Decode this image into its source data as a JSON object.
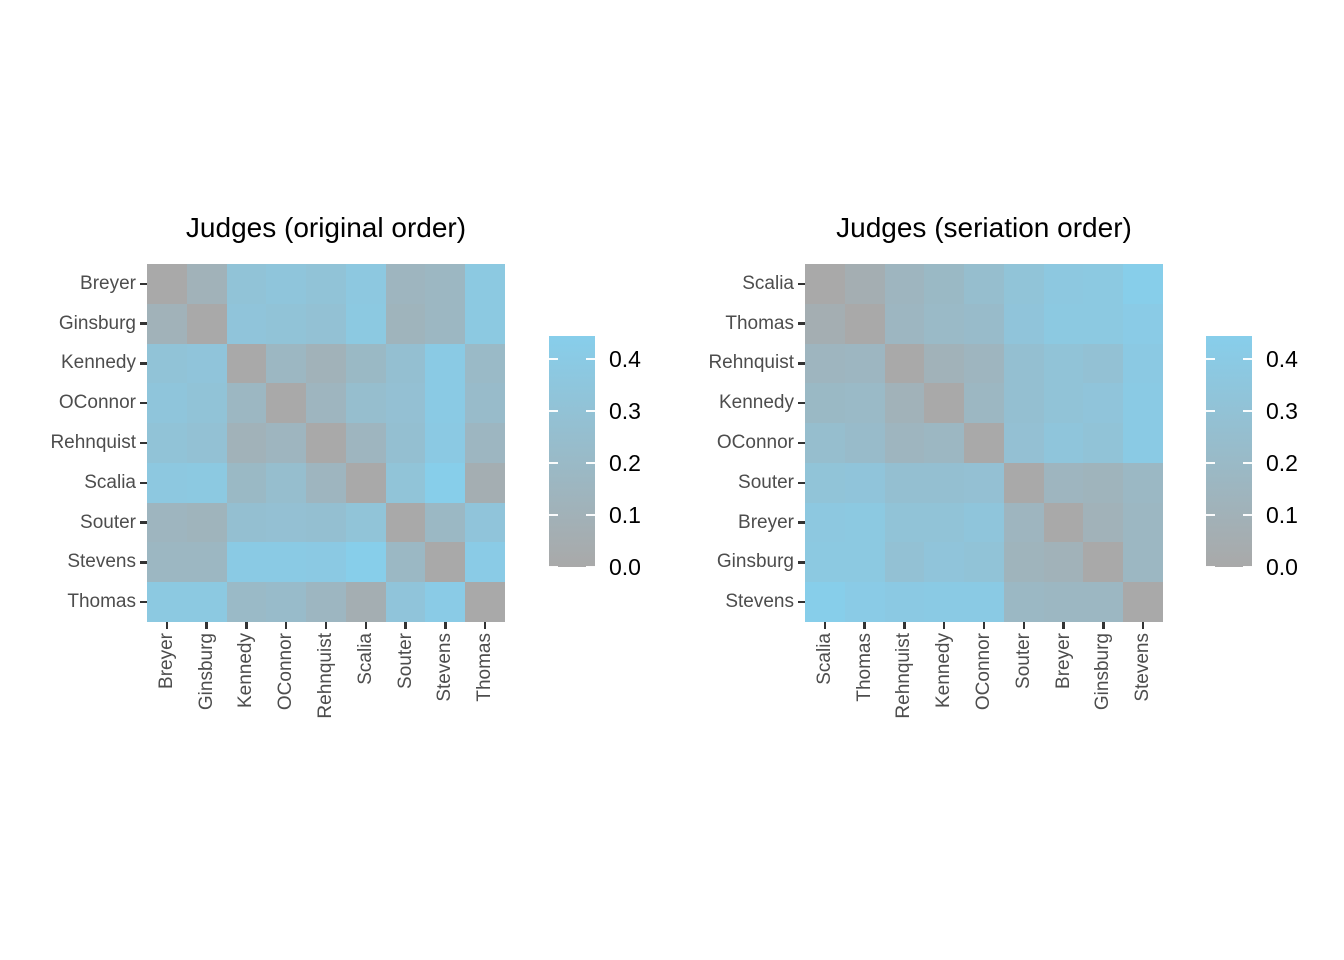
{
  "colors": {
    "background": "#ffffff",
    "title_text": "#000000",
    "axis_text": "#4d4d4d",
    "axis_tick": "#333333",
    "heatmap_low": "#a9a9a9",
    "heatmap_high": "#87ceeb"
  },
  "chart_data": [
    {
      "type": "heatmap",
      "title": "Judges (original order)",
      "rows": [
        "Breyer",
        "Ginsburg",
        "Kennedy",
        "OConnor",
        "Rehnquist",
        "Scalia",
        "Souter",
        "Stevens",
        "Thomas"
      ],
      "cols": [
        "Breyer",
        "Ginsburg",
        "Kennedy",
        "OConnor",
        "Rehnquist",
        "Scalia",
        "Souter",
        "Stevens",
        "Thomas"
      ],
      "values": [
        [
          0.0,
          0.11,
          0.31,
          0.34,
          0.31,
          0.37,
          0.15,
          0.17,
          0.38
        ],
        [
          0.11,
          0.0,
          0.33,
          0.31,
          0.29,
          0.38,
          0.13,
          0.17,
          0.38
        ],
        [
          0.31,
          0.33,
          0.0,
          0.17,
          0.11,
          0.19,
          0.27,
          0.4,
          0.2
        ],
        [
          0.34,
          0.31,
          0.17,
          0.0,
          0.15,
          0.25,
          0.28,
          0.4,
          0.22
        ],
        [
          0.31,
          0.29,
          0.11,
          0.15,
          0.0,
          0.15,
          0.27,
          0.39,
          0.16
        ],
        [
          0.37,
          0.38,
          0.19,
          0.25,
          0.15,
          0.0,
          0.32,
          0.44,
          0.06
        ],
        [
          0.15,
          0.13,
          0.27,
          0.28,
          0.27,
          0.32,
          0.0,
          0.18,
          0.33
        ],
        [
          0.17,
          0.17,
          0.4,
          0.4,
          0.39,
          0.44,
          0.18,
          0.0,
          0.41
        ],
        [
          0.38,
          0.38,
          0.2,
          0.22,
          0.16,
          0.06,
          0.33,
          0.41,
          0.0
        ]
      ],
      "legend": {
        "tick_labels": [
          "0.0",
          "0.1",
          "0.2",
          "0.3",
          "0.4"
        ],
        "tick_values": [
          0.0,
          0.1,
          0.2,
          0.3,
          0.4
        ],
        "scale_min": 0.0,
        "scale_max": 0.445,
        "low_color": "#a9a9a9",
        "high_color": "#87ceeb"
      }
    },
    {
      "type": "heatmap",
      "title": "Judges (seriation order)",
      "rows": [
        "Scalia",
        "Thomas",
        "Rehnquist",
        "Kennedy",
        "OConnor",
        "Souter",
        "Breyer",
        "Ginsburg",
        "Stevens"
      ],
      "cols": [
        "Scalia",
        "Thomas",
        "Rehnquist",
        "Kennedy",
        "OConnor",
        "Souter",
        "Breyer",
        "Ginsburg",
        "Stevens"
      ],
      "values": [
        [
          0.0,
          0.06,
          0.15,
          0.19,
          0.25,
          0.32,
          0.37,
          0.38,
          0.44
        ],
        [
          0.06,
          0.0,
          0.16,
          0.2,
          0.22,
          0.33,
          0.38,
          0.38,
          0.41
        ],
        [
          0.15,
          0.16,
          0.0,
          0.11,
          0.15,
          0.27,
          0.31,
          0.29,
          0.39
        ],
        [
          0.19,
          0.2,
          0.11,
          0.0,
          0.17,
          0.27,
          0.31,
          0.33,
          0.4
        ],
        [
          0.25,
          0.22,
          0.15,
          0.17,
          0.0,
          0.28,
          0.34,
          0.31,
          0.4
        ],
        [
          0.32,
          0.33,
          0.27,
          0.27,
          0.28,
          0.0,
          0.15,
          0.13,
          0.18
        ],
        [
          0.37,
          0.38,
          0.31,
          0.31,
          0.34,
          0.15,
          0.0,
          0.11,
          0.17
        ],
        [
          0.38,
          0.38,
          0.29,
          0.33,
          0.31,
          0.13,
          0.11,
          0.0,
          0.17
        ],
        [
          0.44,
          0.41,
          0.39,
          0.4,
          0.4,
          0.18,
          0.17,
          0.17,
          0.0
        ]
      ],
      "legend": {
        "tick_labels": [
          "0.0",
          "0.1",
          "0.2",
          "0.3",
          "0.4"
        ],
        "tick_values": [
          0.0,
          0.1,
          0.2,
          0.3,
          0.4
        ],
        "scale_min": 0.0,
        "scale_max": 0.445,
        "low_color": "#a9a9a9",
        "high_color": "#87ceeb"
      }
    }
  ]
}
